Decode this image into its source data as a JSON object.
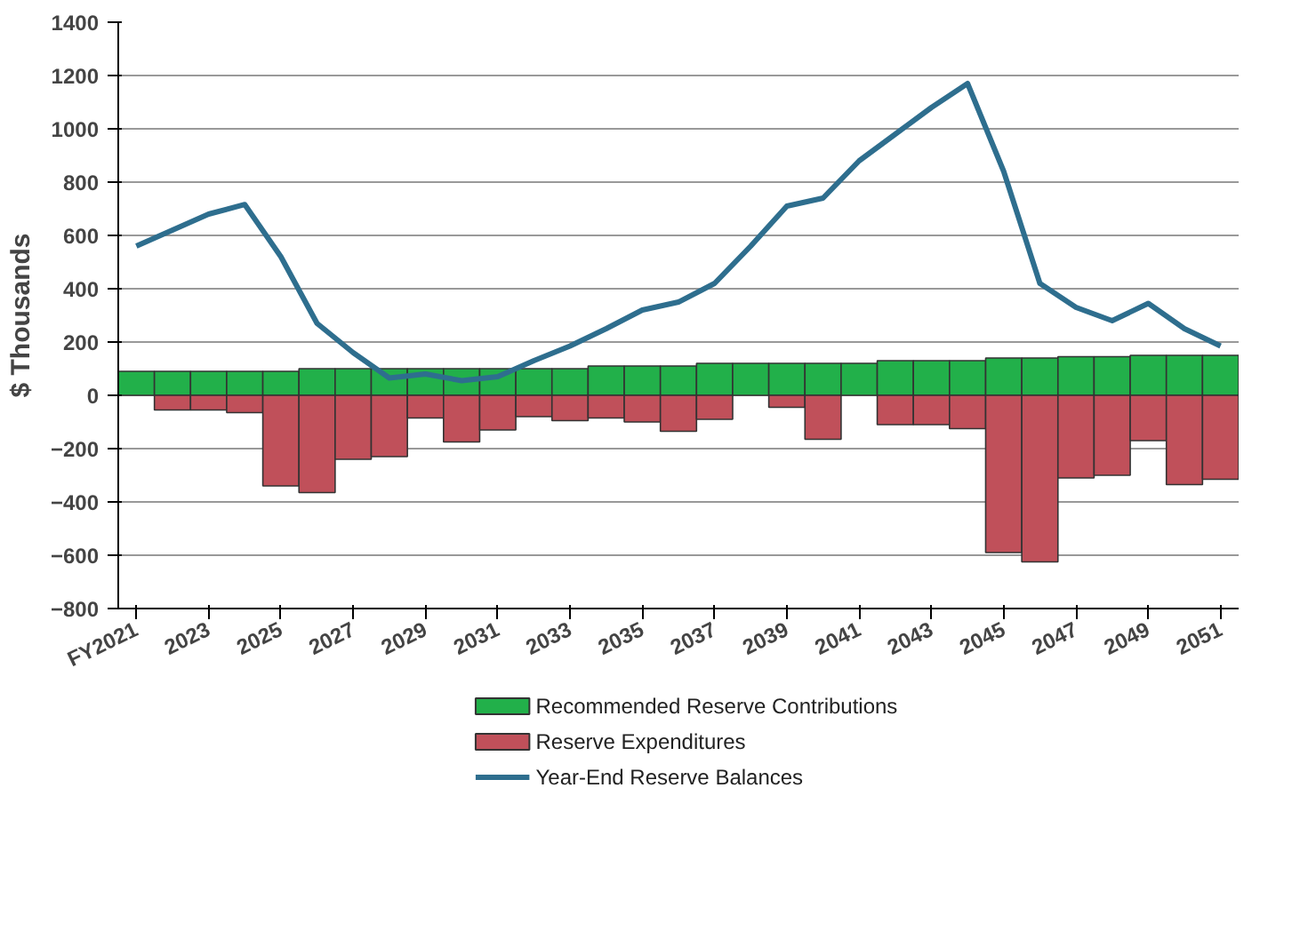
{
  "chart_data": {
    "type": "bar",
    "ylabel": "$ Thousands",
    "categories": [
      "FY2021",
      null,
      "2023",
      null,
      "2025",
      null,
      "2027",
      null,
      "2029",
      null,
      "2031",
      null,
      "2033",
      null,
      "2035",
      null,
      "2037",
      null,
      "2039",
      null,
      "2041",
      null,
      "2043",
      null,
      "2045",
      null,
      "2047",
      null,
      "2049",
      null,
      "2051"
    ],
    "series": [
      {
        "name": "Recommended Reserve Contributions",
        "color": "#22b04a",
        "values": [
          90,
          90,
          90,
          90,
          90,
          100,
          100,
          100,
          100,
          100,
          100,
          100,
          100,
          110,
          110,
          110,
          120,
          120,
          120,
          120,
          120,
          130,
          130,
          130,
          140,
          140,
          145,
          145,
          150,
          150,
          150
        ]
      },
      {
        "name": "Reserve Expenditures",
        "color": "#c0505a",
        "values": [
          0,
          -55,
          -55,
          -65,
          -340,
          -365,
          -240,
          -230,
          -85,
          -175,
          -130,
          -80,
          -95,
          -85,
          -100,
          -135,
          -90,
          0,
          -45,
          -165,
          0,
          -110,
          -110,
          -125,
          -590,
          -625,
          -310,
          -300,
          -170,
          -335,
          -315
        ]
      },
      {
        "name": "Year-End Reserve Balances",
        "type": "line",
        "color": "#2e6e8e",
        "values": [
          560,
          620,
          680,
          716,
          520,
          270,
          160,
          65,
          80,
          55,
          70,
          130,
          185,
          250,
          320,
          350,
          420,
          560,
          710,
          740,
          880,
          980,
          1080,
          1170,
          840,
          420,
          330,
          280,
          345,
          250,
          185
        ]
      }
    ],
    "ylim": [
      -800,
      1400
    ],
    "yticks": [
      -800,
      -600,
      -400,
      -200,
      0,
      200,
      400,
      600,
      800,
      1000,
      1200,
      1400
    ],
    "stacked": true,
    "grid": "y",
    "legend": "bottom",
    "marker": "none",
    "line_style": "solid"
  }
}
